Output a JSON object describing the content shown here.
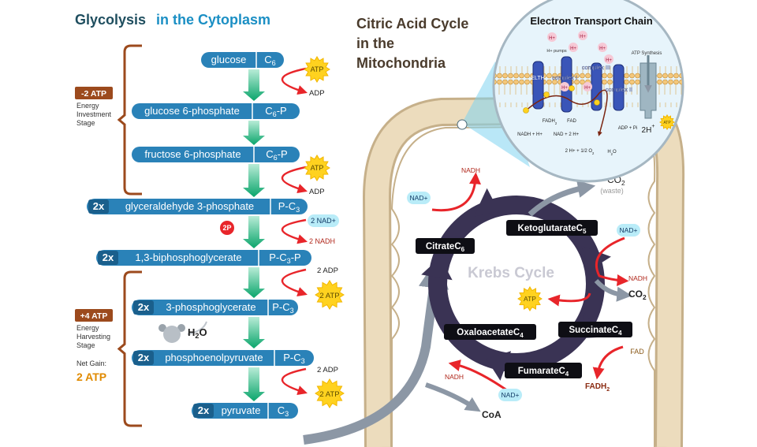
{
  "glycolysis": {
    "title": "Glycolysis",
    "location": "in the Cytoplasm",
    "steps": [
      {
        "name": "glucose",
        "formula": "C",
        "sub": "6"
      },
      {
        "name": "glucose 6-phosphate",
        "formula": "C",
        "sub": "6",
        "suffix": "-P"
      },
      {
        "name": "fructose 6-phosphate",
        "formula": "C",
        "sub": "6",
        "suffix": "-P"
      },
      {
        "count": "2x",
        "name": "glyceraldehyde 3-phosphate",
        "formula": "P-C",
        "sub": "3"
      },
      {
        "count": "2x",
        "name": "1,3-biphosphoglycerate",
        "formula": "P-C",
        "sub": "3",
        "suffix": "-P"
      },
      {
        "count": "2x",
        "name": "3-phosphoglycerate",
        "formula": "P-C",
        "sub": "3"
      },
      {
        "count": "2x",
        "name": "phosphoenolpyruvate",
        "formula": "P-C",
        "sub": "3"
      },
      {
        "count": "2x",
        "name": "pyruvate",
        "formula": "C",
        "sub": "3"
      }
    ],
    "reactions": [
      {
        "in": "ATP",
        "out": "ADP"
      },
      {
        "in": "ATP",
        "out": "ADP"
      },
      {
        "in": "2 NAD+",
        "out": "2 NADH",
        "phosphate": "2P"
      },
      {
        "in": "2 ADP",
        "out": "2 ATP"
      },
      {
        "in": "2 ADP",
        "out": "2 ATP"
      }
    ],
    "water": {
      "formula": "H",
      "sub": "2",
      "suffix": "O"
    },
    "investment": {
      "atp": "-2 ATP",
      "lines": [
        "Energy",
        "Investment",
        "Stage"
      ]
    },
    "harvesting": {
      "atp": "+4 ATP",
      "lines": [
        "Energy",
        "Harvesting",
        "Stage"
      ]
    },
    "net_gain": {
      "label": "Net Gain:",
      "value": "2 ATP"
    }
  },
  "citric_acid_cycle": {
    "title_lines": [
      "Citric Acid Cycle",
      "in the",
      "Mitochondria"
    ],
    "cycle_name": "Krebs Cycle",
    "intermediates": [
      {
        "name": "Citrate",
        "formula": "C",
        "sub": "6"
      },
      {
        "name": "Ketoglutarate",
        "formula": "C",
        "sub": "5"
      },
      {
        "name": "Succinate",
        "formula": "C",
        "sub": "4"
      },
      {
        "name": "Fumarate",
        "formula": "C",
        "sub": "4"
      },
      {
        "name": "Oxaloacetate",
        "formula": "C",
        "sub": "4"
      }
    ],
    "nad_in": [
      "NAD+",
      "NAD+",
      "NAD+"
    ],
    "nadh_out": [
      "NADH",
      "NADH",
      "NADH"
    ],
    "co2": [
      {
        "formula": "CO",
        "sub": "2"
      },
      {
        "formula": "CO",
        "sub": "2"
      }
    ],
    "waste": "(waste)",
    "atp": "ATP",
    "fad": "FAD",
    "fadh": {
      "formula": "FADH",
      "sub": "2"
    },
    "coa": "CoA"
  },
  "electron_transport_chain": {
    "title": "Electron Transport Chain",
    "protons": [
      "H+",
      "H+",
      "H+",
      "H+",
      "H+",
      "H+",
      "H+"
    ],
    "pumps": "H+ pumps",
    "synthesis": "ATP Synthesis",
    "e_label": "ELTH",
    "complexes": [
      "complex I",
      "complex III",
      "complex II"
    ],
    "fadh": {
      "formula": "FADH",
      "sub": "2"
    },
    "fad": "FAD",
    "nadh": "NADH + H+",
    "nad": "NAD + 2 H+",
    "oxygen": {
      "formula": "2 H+ + 1/2 O",
      "sub": "2"
    },
    "water": {
      "formula": "H",
      "sub": "2",
      "suffix": "O"
    },
    "adp": "ADP + Pi",
    "protons_out": {
      "formula": "2H",
      "sup": "+"
    },
    "atp": "ATP"
  }
}
